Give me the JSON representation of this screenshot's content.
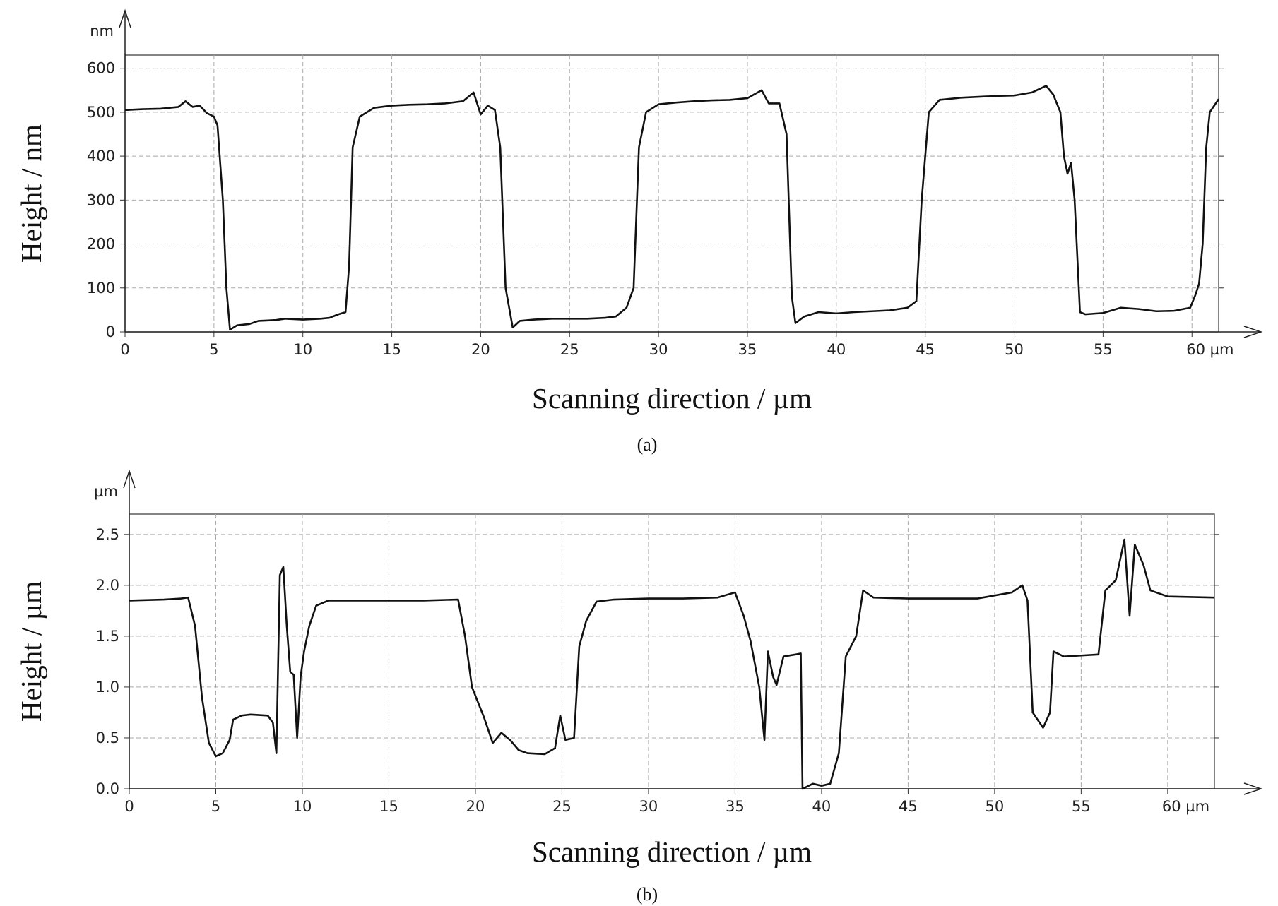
{
  "chart_data": [
    {
      "type": "line",
      "caption": "(a)",
      "xlabel": "Scanning direction / µm",
      "ylabel": "Height / nm",
      "y_unit": "nm",
      "color": "#111111",
      "grid": true,
      "xlim": [
        0,
        61.5
      ],
      "ylim": [
        0,
        630
      ],
      "xticks": [
        0,
        5,
        10,
        15,
        20,
        25,
        30,
        35,
        40,
        45,
        50,
        55,
        {
          "value": 60,
          "label": "60 µm"
        }
      ],
      "yticks": [
        0,
        100,
        200,
        300,
        400,
        500,
        600
      ],
      "x": [
        0,
        1,
        2,
        3,
        3.4,
        3.8,
        4.2,
        4.6,
        5,
        5.2,
        5.5,
        5.7,
        5.9,
        6.3,
        7,
        7.5,
        8.5,
        9,
        10,
        11,
        11.5,
        12,
        12.4,
        12.6,
        12.8,
        13.2,
        14,
        15,
        16,
        17,
        18,
        19,
        19.6,
        20,
        20.4,
        20.8,
        21.1,
        21.4,
        21.8,
        22.2,
        23,
        24,
        25,
        26,
        27,
        27.6,
        28.2,
        28.6,
        28.9,
        29.3,
        30,
        31,
        32,
        33,
        34,
        35,
        35.8,
        36.2,
        36.8,
        37.2,
        37.5,
        37.7,
        38.2,
        39,
        40,
        41,
        42,
        43,
        44,
        44.5,
        44.8,
        45.2,
        45.8,
        47,
        48,
        49,
        50,
        51,
        51.8,
        52.2,
        52.6,
        52.8,
        53,
        53.2,
        53.4,
        53.7,
        54,
        55,
        56,
        57,
        58,
        59,
        59.9,
        60.2,
        60.4,
        60.6,
        60.8,
        61,
        61.5
      ],
      "values": [
        505,
        507,
        508,
        512,
        525,
        512,
        515,
        498,
        490,
        470,
        300,
        100,
        5,
        15,
        18,
        25,
        27,
        30,
        28,
        30,
        32,
        40,
        45,
        150,
        420,
        490,
        510,
        515,
        517,
        518,
        520,
        525,
        545,
        495,
        515,
        505,
        420,
        100,
        10,
        25,
        28,
        30,
        30,
        30,
        32,
        35,
        55,
        100,
        420,
        500,
        518,
        522,
        525,
        527,
        528,
        532,
        550,
        520,
        520,
        450,
        80,
        20,
        35,
        45,
        42,
        45,
        47,
        49,
        55,
        70,
        300,
        500,
        528,
        533,
        535,
        537,
        538,
        545,
        560,
        540,
        500,
        400,
        360,
        385,
        300,
        45,
        40,
        43,
        55,
        52,
        47,
        48,
        55,
        85,
        110,
        200,
        420,
        500,
        530
      ]
    },
    {
      "type": "line",
      "caption": "(b)",
      "xlabel": "Scanning direction / µm",
      "ylabel": "Height / µm",
      "y_unit": "µm",
      "color": "#111111",
      "grid": true,
      "xlim": [
        0,
        62.7
      ],
      "ylim": [
        0,
        2.7
      ],
      "xticks": [
        0,
        5,
        10,
        15,
        20,
        25,
        30,
        35,
        40,
        45,
        50,
        55,
        {
          "value": 60,
          "label": "60 µm"
        }
      ],
      "yticks": [
        {
          "value": 0,
          "label": "0.0"
        },
        0.5,
        {
          "value": 1,
          "label": "1.0"
        },
        1.5,
        {
          "value": 2,
          "label": "2.0"
        },
        2.5
      ],
      "x": [
        0,
        2,
        3,
        3.4,
        3.8,
        4.2,
        4.6,
        5,
        5.4,
        5.8,
        6,
        6.5,
        7,
        8,
        8.3,
        8.5,
        8.7,
        8.9,
        9.1,
        9.3,
        9.5,
        9.7,
        9.9,
        10.1,
        10.4,
        10.8,
        11.5,
        13,
        15,
        17,
        19,
        19.4,
        19.8,
        20.5,
        21,
        21.5,
        22,
        22.5,
        23,
        24,
        24.6,
        24.9,
        25.2,
        25.7,
        26,
        26.4,
        27,
        28,
        30,
        32,
        34,
        35,
        35.5,
        35.9,
        36.4,
        36.7,
        36.9,
        37.2,
        37.4,
        37.8,
        38.5,
        38.8,
        38.9,
        39.5,
        40,
        40.5,
        41,
        41.4,
        42,
        42.4,
        43,
        45,
        47,
        49,
        51,
        51.6,
        51.9,
        52.2,
        52.8,
        53.2,
        53.4,
        54,
        56,
        56.4,
        57,
        57.5,
        57.8,
        58.1,
        58.6,
        59,
        60,
        62.7
      ],
      "values": [
        1.85,
        1.86,
        1.87,
        1.88,
        1.6,
        0.9,
        0.45,
        0.32,
        0.35,
        0.48,
        0.68,
        0.72,
        0.73,
        0.72,
        0.65,
        0.35,
        2.1,
        2.18,
        1.6,
        1.15,
        1.12,
        0.5,
        1.1,
        1.35,
        1.6,
        1.8,
        1.85,
        1.85,
        1.85,
        1.85,
        1.86,
        1.5,
        1.0,
        0.7,
        0.45,
        0.55,
        0.48,
        0.38,
        0.35,
        0.34,
        0.4,
        0.72,
        0.48,
        0.5,
        1.4,
        1.65,
        1.84,
        1.86,
        1.87,
        1.87,
        1.88,
        1.93,
        1.7,
        1.45,
        1.0,
        0.48,
        1.35,
        1.1,
        1.02,
        1.3,
        1.32,
        1.33,
        0,
        0.05,
        0.03,
        0.05,
        0.35,
        1.3,
        1.5,
        1.95,
        1.88,
        1.87,
        1.87,
        1.87,
        1.93,
        2.0,
        1.85,
        0.75,
        0.6,
        0.75,
        1.35,
        1.3,
        1.32,
        1.95,
        2.05,
        2.45,
        1.7,
        2.4,
        2.2,
        1.95,
        1.89,
        1.88
      ]
    }
  ]
}
